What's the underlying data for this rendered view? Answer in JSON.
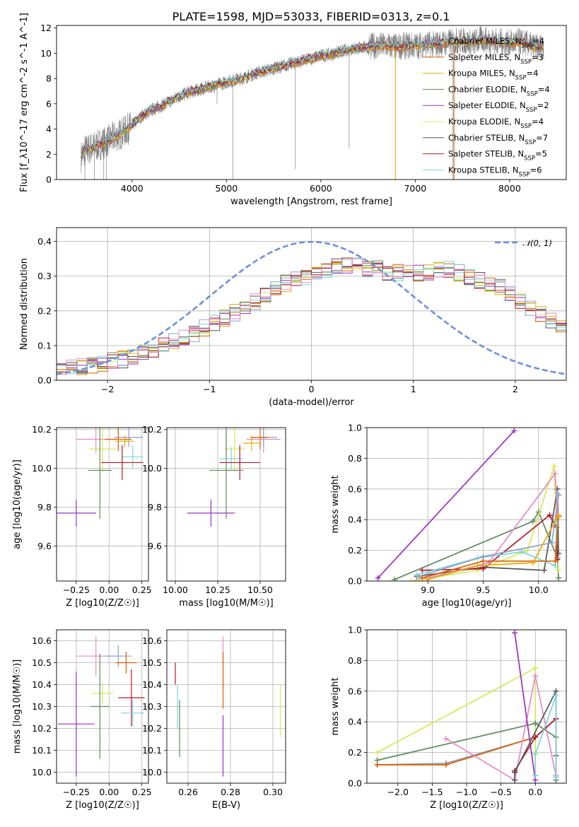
{
  "figure_title": "PLATE=1598, MJD=53033, FIBERID=0313, z=0.1",
  "colors": {
    "chabrier_miles": "#8da0cb",
    "salpeter_miles": "#d95f02",
    "kroupa_miles": "#e6ab02",
    "chabrier_elodie": "#5e8a5e",
    "salpeter_elodie": "#9b30c0",
    "kroupa_elodie": "#d4e85a",
    "chabrier_stelib": "#555555",
    "salpeter_stelib": "#b2182b",
    "kroupa_stelib": "#7fd3d8",
    "data": "#808080",
    "normal": "#6f8fdc",
    "pink": "#e78ac3"
  },
  "chart_data": [
    {
      "id": "spectrum",
      "type": "line",
      "title": "PLATE=1598, MJD=53033, FIBERID=0313, z=0.1",
      "xlabel": "wavelength [Angstrom, rest frame]",
      "ylabel": "Flux [f_λ10^-17 erg cm^-2 s^-1 A^-1]",
      "xlim": [
        3200,
        8600
      ],
      "ylim": [
        0,
        12.2
      ],
      "xticks": [
        4000,
        5000,
        6000,
        7000,
        8000
      ],
      "yticks": [
        0,
        2,
        4,
        6,
        8,
        10,
        12
      ],
      "grid": false,
      "legend_position": "top-right",
      "continuum": {
        "x": [
          3450,
          3500,
          3600,
          3700,
          3800,
          3900,
          4000,
          4100,
          4200,
          4300,
          4400,
          4500,
          4600,
          4700,
          4800,
          4900,
          5000,
          5100,
          5200,
          5300,
          5400,
          5500,
          5600,
          5700,
          5800,
          5900,
          6000,
          6100,
          6200,
          6300,
          6400,
          6500,
          6600,
          6700,
          6800,
          6900,
          7000,
          7100,
          7200,
          7300,
          7400,
          7500,
          7600,
          7700,
          7800,
          7900,
          8000,
          8100,
          8200,
          8300,
          8350
        ],
        "y": [
          1.7,
          2.3,
          2.6,
          2.9,
          3.3,
          3.7,
          4.3,
          5.0,
          5.5,
          5.8,
          6.2,
          6.6,
          6.9,
          7.1,
          7.3,
          7.5,
          7.7,
          7.9,
          8.1,
          8.4,
          8.6,
          8.8,
          9.0,
          9.2,
          9.4,
          9.6,
          9.8,
          9.9,
          10.1,
          10.3,
          10.4,
          10.5,
          10.6,
          10.6,
          10.5,
          10.6,
          10.6,
          10.7,
          10.7,
          10.8,
          10.9,
          11.0,
          10.8,
          11.1,
          11.0,
          10.9,
          10.8,
          10.9,
          10.7,
          10.4,
          10.6
        ]
      },
      "series": [
        {
          "name": "Chabrier MILES, N_SSP=4",
          "color": "#8da0cb"
        },
        {
          "name": "Salpeter MILES, N_SSP=3",
          "color": "#d95f02"
        },
        {
          "name": "Kroupa MILES, N_SSP=4",
          "color": "#e6ab02"
        },
        {
          "name": "Chabrier ELODIE, N_SSP=4",
          "color": "#5e8a5e"
        },
        {
          "name": "Salpeter ELODIE, N_SSP=2",
          "color": "#9b30c0"
        },
        {
          "name": "Kroupa ELODIE, N_SSP=4",
          "color": "#d4e85a"
        },
        {
          "name": "Chabrier STELIB, N_SSP=7",
          "color": "#555555"
        },
        {
          "name": "Salpeter STELIB, N_SSP=5",
          "color": "#b2182b"
        },
        {
          "name": "Kroupa STELIB, N_SSP=6",
          "color": "#7fd3d8"
        }
      ]
    },
    {
      "id": "residuals",
      "type": "line",
      "xlabel": "(data-model)/error",
      "ylabel": "Normed distribution",
      "xlim": [
        -2.5,
        2.5
      ],
      "ylim": [
        0,
        0.44
      ],
      "xticks": [
        -2,
        -1,
        0,
        1,
        2
      ],
      "yticks": [
        0.0,
        0.1,
        0.2,
        0.3,
        0.4
      ],
      "grid": true,
      "legend_position": "top-right",
      "legend_label": "𝒩(0, 1)",
      "histogram_bins": {
        "start": -2.5,
        "width": 0.1,
        "count": 50
      },
      "histogram_base": [
        0.03,
        0.035,
        0.04,
        0.045,
        0.05,
        0.055,
        0.06,
        0.07,
        0.08,
        0.09,
        0.1,
        0.11,
        0.12,
        0.135,
        0.15,
        0.165,
        0.18,
        0.195,
        0.21,
        0.225,
        0.245,
        0.265,
        0.28,
        0.29,
        0.3,
        0.31,
        0.32,
        0.33,
        0.33,
        0.33,
        0.32,
        0.32,
        0.31,
        0.31,
        0.31,
        0.31,
        0.31,
        0.32,
        0.32,
        0.31,
        0.3,
        0.29,
        0.28,
        0.27,
        0.25,
        0.23,
        0.21,
        0.19,
        0.17,
        0.16
      ]
    },
    {
      "id": "age-vs-Z",
      "type": "scatter",
      "xlabel": "Z [log10(Z/Z☉)]",
      "ylabel": "age [log10(age/yr)]",
      "xlim": [
        -0.4,
        0.3
      ],
      "ylim": [
        9.42,
        10.21
      ],
      "xticks": [
        -0.25,
        0.0,
        0.25
      ],
      "yticks": [
        9.6,
        9.8,
        10.0,
        10.2
      ],
      "grid": true,
      "points": [
        {
          "color": "#e78ac3",
          "x": -0.1,
          "xerr": 0.15,
          "y": 10.15,
          "yerr": 0.07
        },
        {
          "color": "#8da0cb",
          "x": 0.15,
          "xerr": 0.11,
          "y": 10.16,
          "yerr": 0.05
        },
        {
          "color": "#d95f02",
          "x": 0.07,
          "xerr": 0.1,
          "y": 10.15,
          "yerr": 0.06
        },
        {
          "color": "#e6ab02",
          "x": 0.12,
          "xerr": 0.07,
          "y": 10.14,
          "yerr": 0.03
        },
        {
          "color": "#d4e85a",
          "x": -0.05,
          "xerr": 0.1,
          "y": 10.1,
          "yerr": 0.12
        },
        {
          "color": "#7fd3d8",
          "x": 0.18,
          "xerr": 0.08,
          "y": 10.06,
          "yerr": 0.06
        },
        {
          "color": "#b2182b",
          "x": 0.1,
          "xerr": 0.16,
          "y": 10.03,
          "yerr": 0.09
        },
        {
          "color": "#5e8a5e",
          "x": -0.07,
          "xerr": 0.09,
          "y": 9.99,
          "yerr": 0.25
        },
        {
          "color": "#9b30c0",
          "x": -0.25,
          "xerr": 0.15,
          "y": 9.77,
          "yerr": 0.07
        }
      ]
    },
    {
      "id": "age-vs-mass",
      "type": "scatter",
      "xlabel": "mass [log10(M/M☉)]",
      "xlim": [
        9.95,
        10.65
      ],
      "ylim": [
        9.42,
        10.21
      ],
      "xticks": [
        10.0,
        10.25,
        10.5
      ],
      "yticks": [
        9.6,
        9.8,
        10.0,
        10.2
      ],
      "grid": true,
      "points": [
        {
          "color": "#e78ac3",
          "x": 10.52,
          "xerr": 0.1,
          "y": 10.15,
          "yerr": 0.07
        },
        {
          "color": "#8da0cb",
          "x": 10.52,
          "xerr": 0.08,
          "y": 10.16,
          "yerr": 0.05
        },
        {
          "color": "#d95f02",
          "x": 10.5,
          "xerr": 0.05,
          "y": 10.16,
          "yerr": 0.06
        },
        {
          "color": "#e6ab02",
          "x": 10.45,
          "xerr": 0.05,
          "y": 10.13,
          "yerr": 0.04
        },
        {
          "color": "#d4e85a",
          "x": 10.35,
          "xerr": 0.06,
          "y": 10.1,
          "yerr": 0.12
        },
        {
          "color": "#7fd3d8",
          "x": 10.33,
          "xerr": 0.07,
          "y": 10.05,
          "yerr": 0.06
        },
        {
          "color": "#b2182b",
          "x": 10.38,
          "xerr": 0.12,
          "y": 10.03,
          "yerr": 0.09
        },
        {
          "color": "#5e8a5e",
          "x": 10.3,
          "xerr": 0.1,
          "y": 9.99,
          "yerr": 0.25
        },
        {
          "color": "#9b30c0",
          "x": 10.21,
          "xerr": 0.14,
          "y": 9.77,
          "yerr": 0.07
        }
      ]
    },
    {
      "id": "mass-weight-vs-age",
      "type": "line",
      "xlabel": "age [log10(age/yr)]",
      "ylabel": "mass weight",
      "xlim": [
        8.45,
        10.25
      ],
      "ylim": [
        0,
        1.0
      ],
      "xticks": [
        9.0,
        9.5,
        10.0
      ],
      "yticks": [
        0.0,
        0.2,
        0.4,
        0.6,
        0.8,
        1.0
      ],
      "grid": true,
      "series": [
        {
          "color": "#9b30c0",
          "x": [
            8.55,
            9.78
          ],
          "y": [
            0.02,
            0.98
          ]
        },
        {
          "color": "#5e8a5e",
          "x": [
            8.7,
            9.95,
            10.0,
            10.17,
            10.18
          ],
          "y": [
            0.01,
            0.39,
            0.45,
            0.15,
            0.02
          ]
        },
        {
          "color": "#d4e85a",
          "x": [
            8.85,
            9.45,
            9.9,
            10.14,
            10.18
          ],
          "y": [
            0.0,
            0.07,
            0.2,
            0.75,
            0.07
          ]
        },
        {
          "color": "#555555",
          "x": [
            8.9,
            9.5,
            10.05,
            10.17,
            10.18
          ],
          "y": [
            0.03,
            0.09,
            0.07,
            0.6,
            0.18
          ]
        },
        {
          "color": "#b2182b",
          "x": [
            8.95,
            9.5,
            10.1,
            10.16,
            10.17
          ],
          "y": [
            0.07,
            0.08,
            0.43,
            0.35,
            0.14
          ]
        },
        {
          "color": "#7fd3d8",
          "x": [
            8.9,
            9.45,
            9.85,
            10.15,
            10.17
          ],
          "y": [
            0.04,
            0.15,
            0.19,
            0.1,
            0.57
          ]
        },
        {
          "color": "#8da0cb",
          "x": [
            8.92,
            9.5,
            10.12,
            10.18
          ],
          "y": [
            0.03,
            0.16,
            0.25,
            0.56
          ]
        },
        {
          "color": "#e78ac3",
          "x": [
            9.0,
            9.55,
            10.15,
            10.17
          ],
          "y": [
            0.02,
            0.12,
            0.7,
            0.43
          ]
        },
        {
          "color": "#d95f02",
          "x": [
            8.95,
            9.5,
            10.15,
            10.18
          ],
          "y": [
            0.02,
            0.13,
            0.13,
            0.42
          ]
        },
        {
          "color": "#e6ab02",
          "x": [
            9.0,
            9.45,
            9.95,
            10.18
          ],
          "y": [
            0.01,
            0.1,
            0.12,
            0.43
          ]
        }
      ]
    },
    {
      "id": "mass-vs-Z",
      "type": "scatter",
      "xlabel": "Z [log10(Z/Z☉)]",
      "ylabel": "mass [log10(M/M☉)]",
      "xlim": [
        -0.4,
        0.3
      ],
      "ylim": [
        9.95,
        10.65
      ],
      "xticks": [
        -0.25,
        0.0,
        0.25
      ],
      "yticks": [
        10.0,
        10.1,
        10.2,
        10.3,
        10.4,
        10.5,
        10.6
      ],
      "grid": true,
      "points": [
        {
          "color": "#e78ac3",
          "x": -0.1,
          "xerr": 0.15,
          "y": 10.53,
          "yerr": 0.09
        },
        {
          "color": "#8da0cb",
          "x": 0.07,
          "xerr": 0.1,
          "y": 10.53,
          "yerr": 0.05
        },
        {
          "color": "#d95f02",
          "x": 0.13,
          "xerr": 0.08,
          "y": 10.5,
          "yerr": 0.05
        },
        {
          "color": "#d4e85a",
          "x": -0.05,
          "xerr": 0.08,
          "y": 10.36,
          "yerr": 0.05
        },
        {
          "color": "#b2182b",
          "x": 0.17,
          "xerr": 0.1,
          "y": 10.34,
          "yerr": 0.13
        },
        {
          "color": "#5e8a5e",
          "x": -0.07,
          "xerr": 0.07,
          "y": 10.3,
          "yerr": 0.24
        },
        {
          "color": "#7fd3d8",
          "x": 0.18,
          "xerr": 0.09,
          "y": 10.27,
          "yerr": 0.06
        },
        {
          "color": "#9b30c0",
          "x": -0.25,
          "xerr": 0.14,
          "y": 10.22,
          "yerr": 0.24
        }
      ]
    },
    {
      "id": "mass-vs-ebv",
      "type": "scatter",
      "xlabel": "E(B-V)",
      "xlim": [
        0.25,
        0.306
      ],
      "ylim": [
        9.95,
        10.65
      ],
      "xticks": [
        0.26,
        0.28,
        0.3
      ],
      "yticks": [
        10.0,
        10.1,
        10.2,
        10.3,
        10.4,
        10.5,
        10.6
      ],
      "grid": true,
      "points": [
        {
          "color": "#b2182b",
          "x": 0.254,
          "xerr": 0,
          "y": 10.45,
          "yerr": 0.05
        },
        {
          "color": "#7fd3d8",
          "x": 0.255,
          "xerr": 0,
          "y": 10.3,
          "yerr": 0.1
        },
        {
          "color": "#5e8a5e",
          "x": 0.256,
          "xerr": 0,
          "y": 10.2,
          "yerr": 0.13
        },
        {
          "color": "#e78ac3",
          "x": 0.2765,
          "xerr": 0,
          "y": 10.5,
          "yerr": 0.12
        },
        {
          "color": "#d95f02",
          "x": 0.2765,
          "xerr": 0,
          "y": 10.42,
          "yerr": 0.13
        },
        {
          "color": "#9b30c0",
          "x": 0.2765,
          "xerr": 0,
          "y": 10.12,
          "yerr": 0.14
        },
        {
          "color": "#d4e85a",
          "x": 0.3035,
          "xerr": 0,
          "y": 10.28,
          "yerr": 0.12
        }
      ]
    },
    {
      "id": "mass-weight-vs-Z",
      "type": "line",
      "xlabel": "Z [log10(Z/Z☉)]",
      "ylabel": "mass weight",
      "xlim": [
        -2.45,
        0.45
      ],
      "ylim": [
        0,
        1.0
      ],
      "xticks": [
        -2.0,
        -1.5,
        -1.0,
        -0.5,
        0.0
      ],
      "yticks": [
        0.0,
        0.2,
        0.4,
        0.6,
        0.8,
        1.0
      ],
      "grid": true,
      "series": [
        {
          "color": "#d4e85a",
          "x": [
            -2.3,
            0.0,
            0.0,
            0.0
          ],
          "y": [
            0.2,
            0.75,
            0.2,
            0.05
          ]
        },
        {
          "color": "#5e8a5e",
          "x": [
            -2.3,
            0.0,
            0.3,
            0.3
          ],
          "y": [
            0.15,
            0.39,
            0.3,
            0.02
          ]
        },
        {
          "color": "#8da0cb",
          "x": [
            -2.3,
            -1.3,
            0.0,
            0.3
          ],
          "y": [
            0.12,
            0.13,
            0.3,
            0.42
          ]
        },
        {
          "color": "#d95f02",
          "x": [
            -2.3,
            -1.3,
            0.0,
            0.3
          ],
          "y": [
            0.12,
            0.12,
            0.3,
            0.42
          ]
        },
        {
          "color": "#e78ac3",
          "x": [
            -1.3,
            -0.3,
            0.0,
            0.3
          ],
          "y": [
            0.29,
            0.02,
            0.7,
            0.05
          ]
        },
        {
          "color": "#9b30c0",
          "x": [
            -0.3,
            0.0
          ],
          "y": [
            0.98,
            0.02
          ]
        },
        {
          "color": "#b2182b",
          "x": [
            -0.3,
            0.0,
            0.3
          ],
          "y": [
            0.08,
            0.3,
            0.42
          ]
        },
        {
          "color": "#555555",
          "x": [
            -0.3,
            -0.3,
            0.3,
            0.3
          ],
          "y": [
            0.02,
            0.07,
            0.6,
            0.18
          ]
        },
        {
          "color": "#7fd3d8",
          "x": [
            0.0,
            0.0,
            0.3,
            0.3
          ],
          "y": [
            0.05,
            0.19,
            0.57,
            0.04
          ]
        }
      ]
    }
  ]
}
